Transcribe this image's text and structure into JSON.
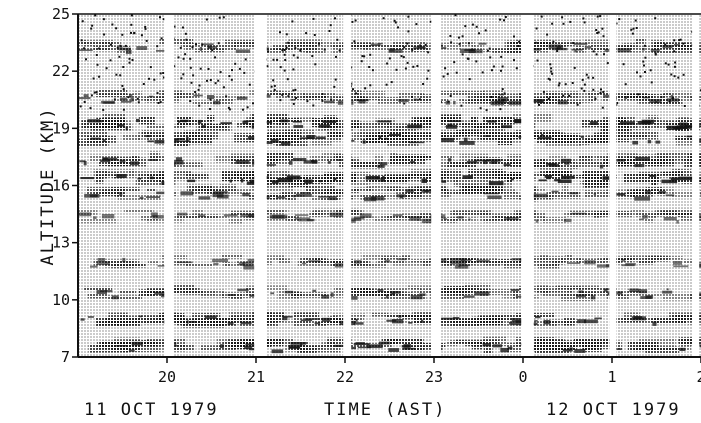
{
  "chart_data": {
    "type": "heatmap",
    "xlabel": "TIME (AST)",
    "ylabel": "ALTITUDE (KM)",
    "date_left": "11 OCT 1979",
    "date_right": "12 OCT 1979",
    "x_ticks": [
      {
        "hour": 20,
        "label": "20"
      },
      {
        "hour": 21,
        "label": "21"
      },
      {
        "hour": 22,
        "label": "22"
      },
      {
        "hour": 23,
        "label": "23"
      },
      {
        "hour": 24,
        "label": "0"
      },
      {
        "hour": 25,
        "label": "1"
      },
      {
        "hour": 26,
        "label": "2"
      }
    ],
    "y_ticks": [
      7,
      10,
      13,
      16,
      19,
      22,
      25
    ],
    "xlim": [
      19.0,
      26.0
    ],
    "ylim": [
      7,
      25
    ],
    "data_gaps_hours": [
      {
        "start": 19.97,
        "end": 20.08
      },
      {
        "start": 20.98,
        "end": 21.12
      },
      {
        "start": 21.98,
        "end": 22.07
      },
      {
        "start": 22.97,
        "end": 23.08
      },
      {
        "start": 23.98,
        "end": 24.12
      },
      {
        "start": 24.97,
        "end": 25.05
      },
      {
        "start": 25.9,
        "end": 25.98
      }
    ],
    "dark_layers_km": [
      {
        "alt": 23.3,
        "strength": 0.45
      },
      {
        "alt": 20.6,
        "strength": 0.5
      },
      {
        "alt": 19.3,
        "strength": 0.85
      },
      {
        "alt": 18.5,
        "strength": 0.75
      },
      {
        "alt": 17.3,
        "strength": 0.7
      },
      {
        "alt": 16.4,
        "strength": 0.9
      },
      {
        "alt": 15.6,
        "strength": 0.55
      },
      {
        "alt": 14.4,
        "strength": 0.35
      },
      {
        "alt": 12.0,
        "strength": 0.35
      },
      {
        "alt": 10.4,
        "strength": 0.55
      },
      {
        "alt": 9.0,
        "strength": 0.7
      },
      {
        "alt": 7.6,
        "strength": 0.75
      }
    ],
    "grid": false,
    "colors": {
      "ink": "#111111",
      "background": "#ffffff"
    }
  }
}
